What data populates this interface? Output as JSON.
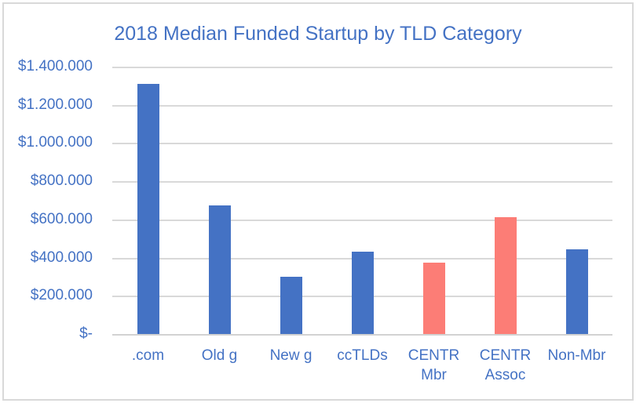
{
  "chart_data": {
    "type": "bar",
    "title": "2018 Median Funded Startup by TLD Category",
    "categories": [
      ".com",
      "Old g",
      "New g",
      "ccTLDs",
      "CENTR\nMbr",
      "CENTR\nAssoc",
      "Non-Mbr"
    ],
    "values": [
      1310000,
      675000,
      300000,
      430000,
      375000,
      610000,
      445000
    ],
    "bar_colors": [
      "#4472C4",
      "#4472C4",
      "#4472C4",
      "#4472C4",
      "#FC7D76",
      "#FC7D76",
      "#4472C4"
    ],
    "y_tick_labels": [
      "$1.400.000",
      "$1.200.000",
      "$1.000.000",
      "$800.000",
      "$600.000",
      "$400.000",
      "$200.000",
      "$-"
    ],
    "ylim": [
      0,
      1400000
    ],
    "y_step": 200000,
    "xlabel": "",
    "ylabel": "",
    "legend": "none",
    "grid": "horizontal",
    "colors": {
      "title_text": "#4472C4",
      "tick_text": "#4472C4",
      "gridline": "#D9D9D9",
      "axis_line": "#D2D2D2",
      "blue_bar": "#4472C4",
      "red_bar": "#FC7D76",
      "frame_border": "#D9D9D9",
      "background": "#FFFFFF"
    }
  }
}
